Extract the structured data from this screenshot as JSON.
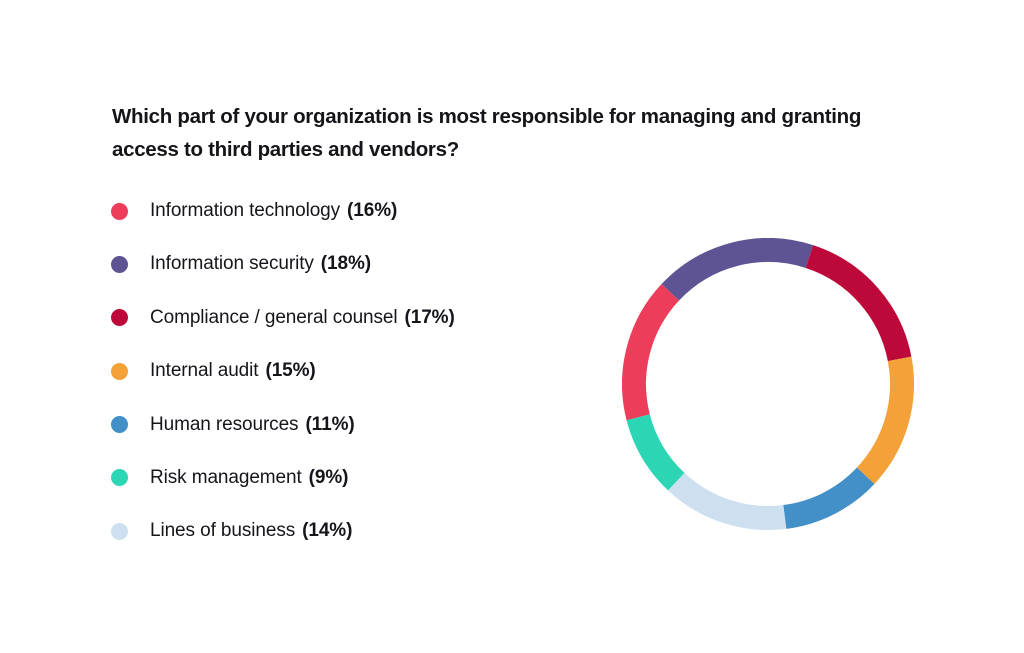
{
  "page": {
    "background_color": "#FFFFFF",
    "text_color": "#15151B"
  },
  "chart_data": {
    "type": "donut",
    "title": "Which part of your organization is most responsible for managing and granting access to third parties and vendors?",
    "title_lines": [
      "Which part of your organization is most responsible for managing and granting",
      "access to third parties and vendors?"
    ],
    "legend_position": "left",
    "direction": "clockwise",
    "start_angle_deg": 255.6,
    "segments": [
      {
        "label": "Information technology",
        "value": 16,
        "pct_label": "(16%)",
        "color": "#EE3D5B"
      },
      {
        "label": "Information security",
        "value": 18,
        "pct_label": "(18%)",
        "color": "#5E5494"
      },
      {
        "label": "Compliance / general counsel",
        "value": 17,
        "pct_label": "(17%)",
        "color": "#BD0939"
      },
      {
        "label": "Internal audit",
        "value": 15,
        "pct_label": "(15%)",
        "color": "#F4A139"
      },
      {
        "label": "Human resources",
        "value": 11,
        "pct_label": "(11%)",
        "color": "#4290C7"
      },
      {
        "label": "Risk management",
        "value": 9,
        "pct_label": "(9%)",
        "color": "#2CD5B4"
      },
      {
        "label": "Lines of business",
        "value": 14,
        "pct_label": "(14%)",
        "color": "#CEE0F0"
      }
    ],
    "draw_order": [
      0,
      1,
      2,
      3,
      4,
      6,
      5
    ]
  }
}
